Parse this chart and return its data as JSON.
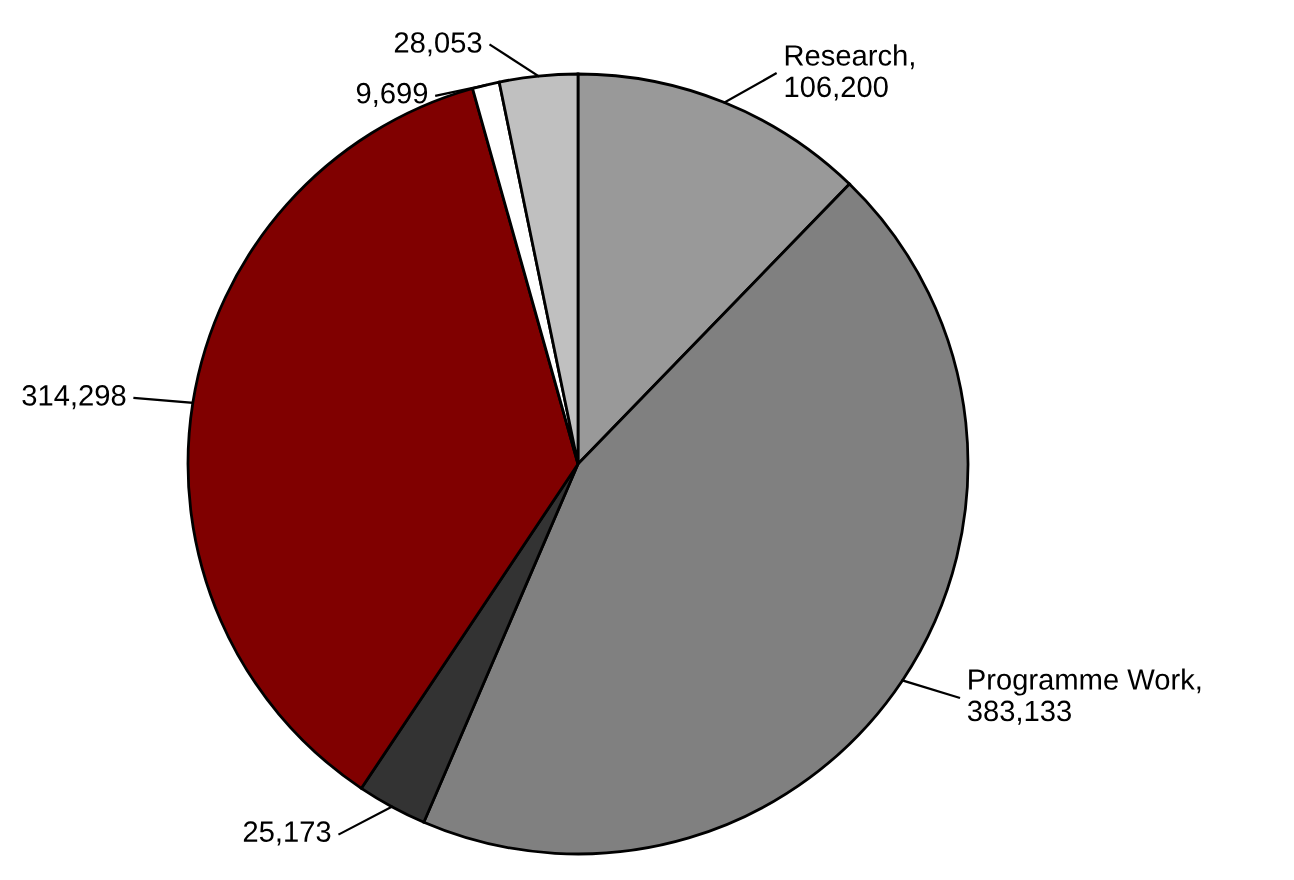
{
  "chart_data": {
    "type": "pie",
    "categories": [
      null,
      null,
      null,
      null,
      null,
      null
    ],
    "values": [
      106200,
      383133,
      25173,
      314298,
      9699,
      28053
    ],
    "colors": [
      "#999999",
      "#808080",
      "#333333",
      "#800000",
      "#ffffff",
      "#c0c0c0"
    ],
    "value_labels": [
      "Research,\n106,200",
      "Programme Work,\n383,133",
      "25,173",
      "314,298",
      "9,699",
      "28,053"
    ]
  }
}
